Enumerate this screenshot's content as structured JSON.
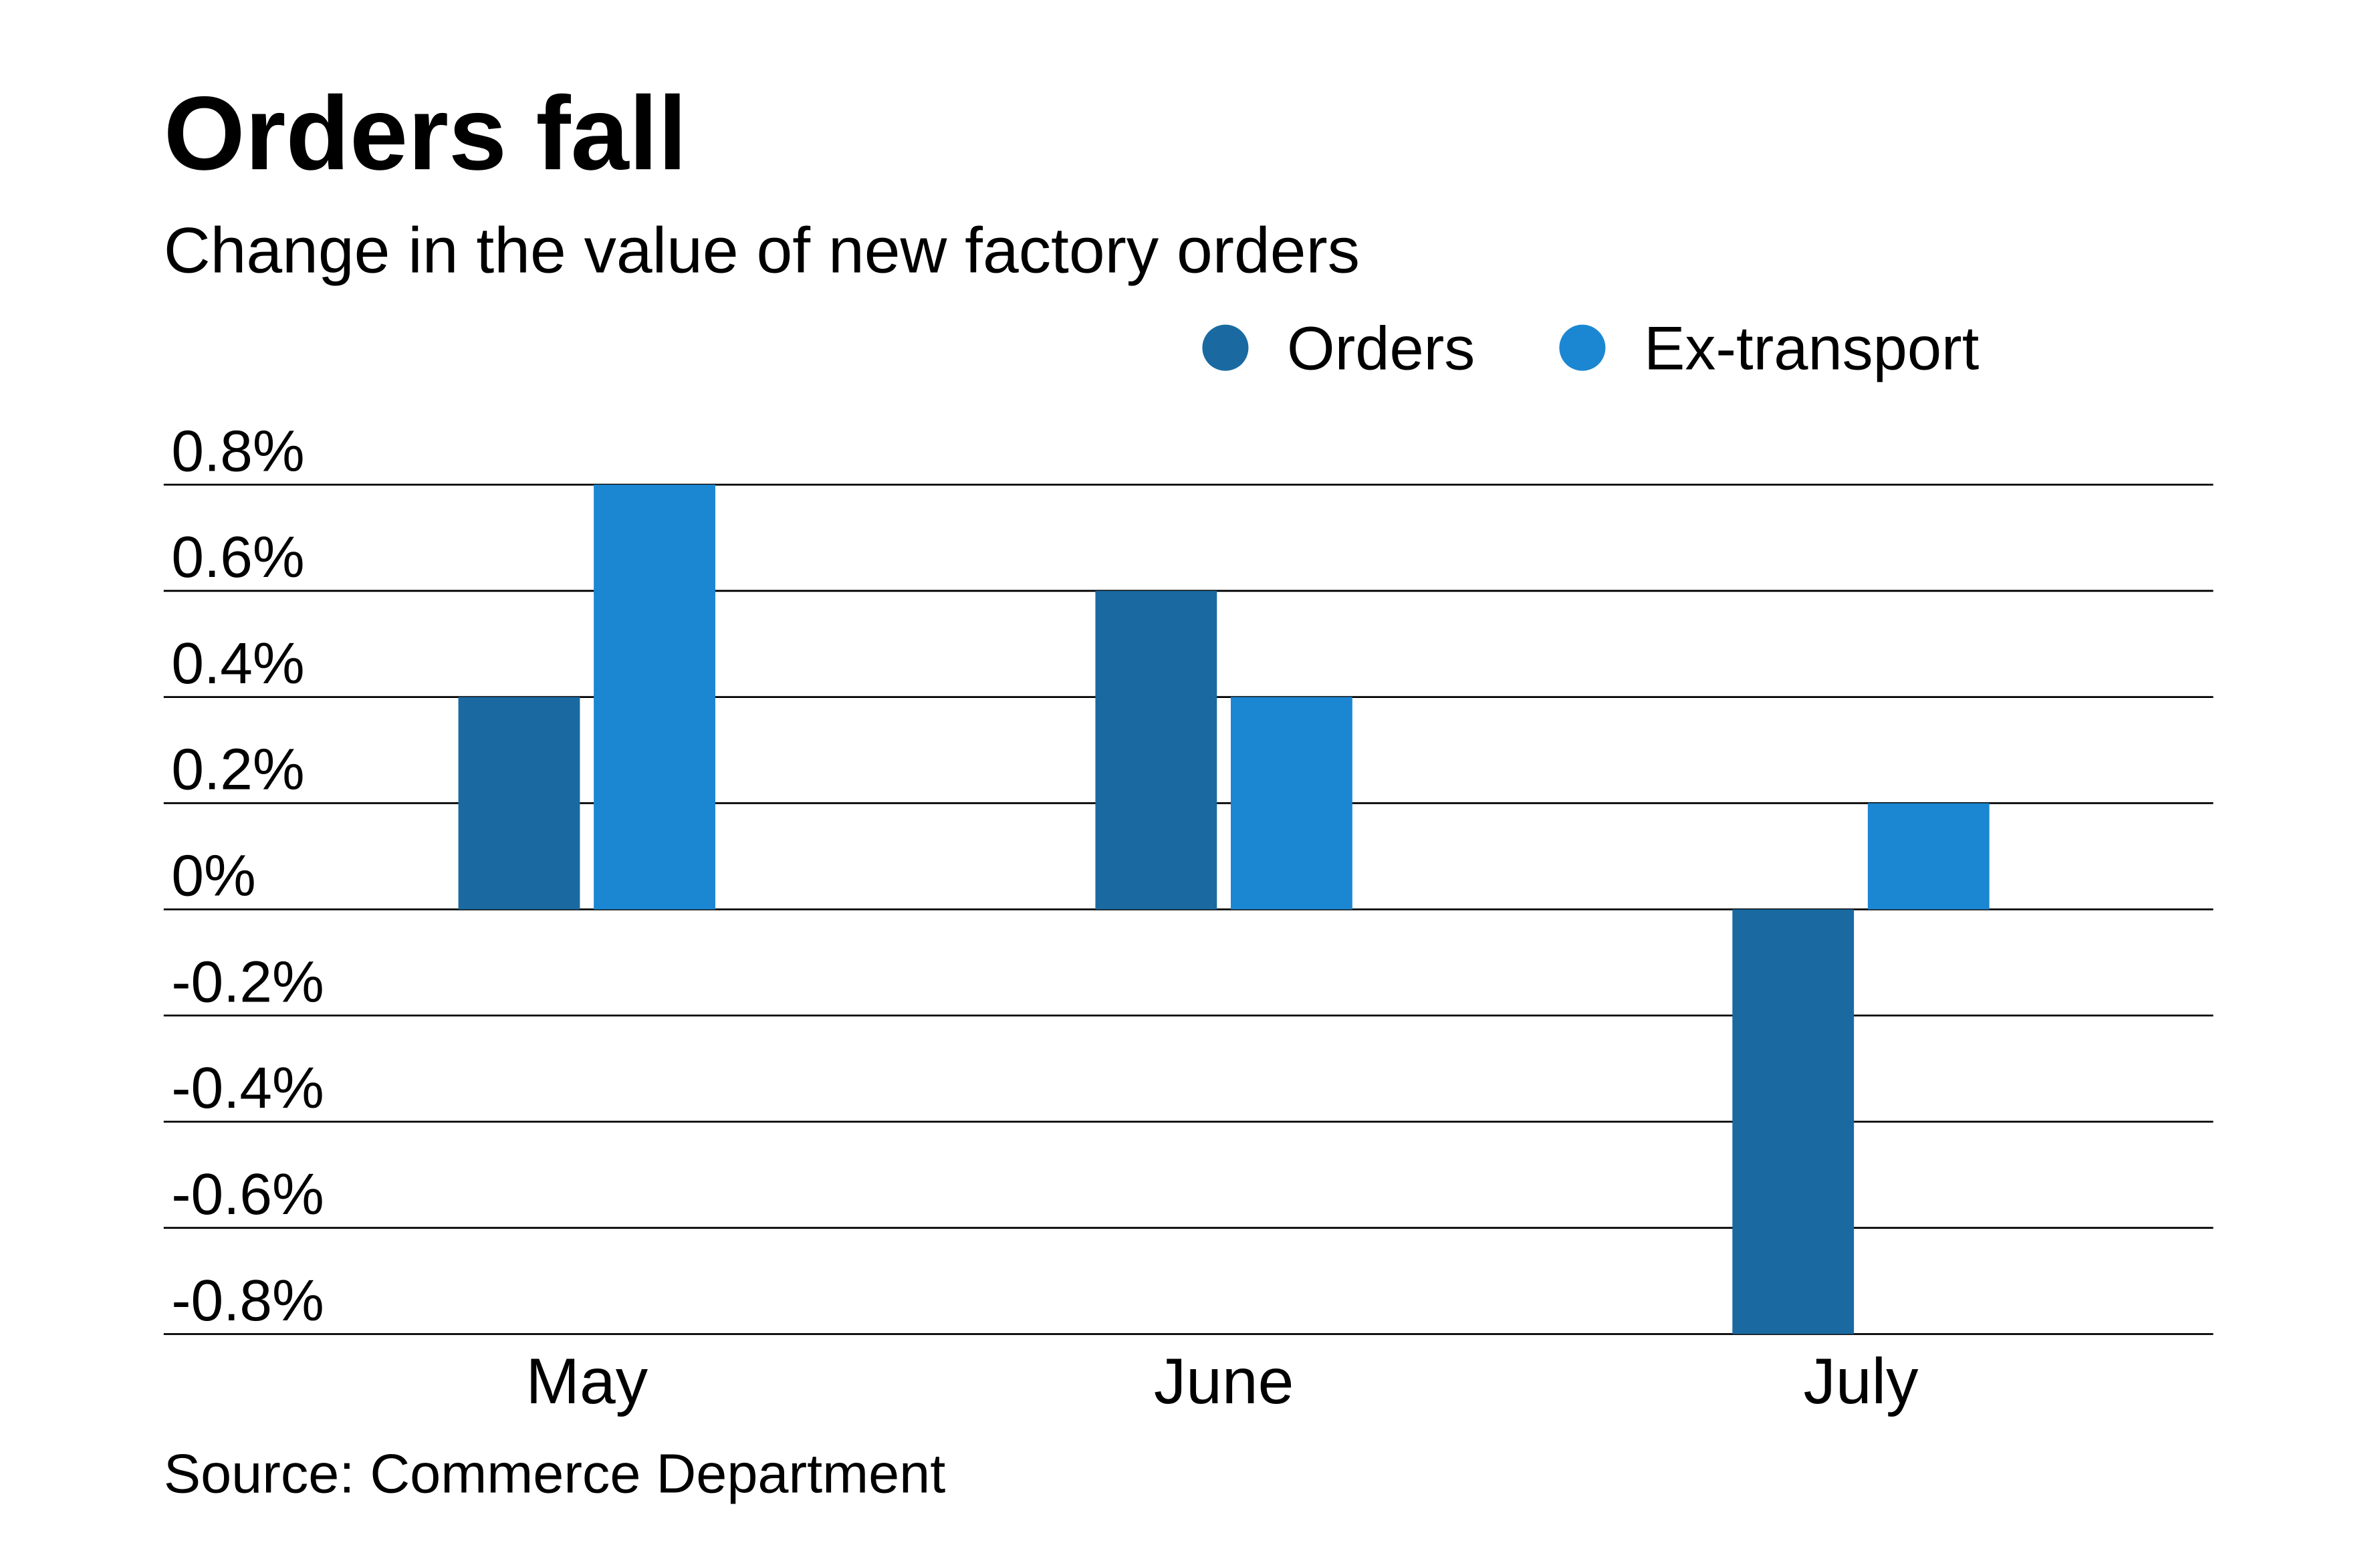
{
  "chart_data": {
    "type": "bar",
    "title": "Orders fall",
    "subtitle": "Change in the value of new factory orders",
    "source": "Source: Commerce Department",
    "categories": [
      "May",
      "June",
      "July"
    ],
    "series": [
      {
        "name": "Orders",
        "values": [
          0.4,
          0.6,
          -0.8
        ],
        "color": "#1a6aa1"
      },
      {
        "name": "Ex-transport",
        "values": [
          0.8,
          0.4,
          0.2
        ],
        "color": "#1b87d2"
      }
    ],
    "yticks": [
      0.8,
      0.6,
      0.4,
      0.2,
      0,
      -0.2,
      -0.4,
      -0.6,
      -0.8
    ],
    "ytick_labels": [
      "0.8%",
      "0.6%",
      "0.4%",
      "0.2%",
      "0%",
      "-0.2%",
      "-0.4%",
      "-0.6%",
      "-0.8%"
    ],
    "ylim": [
      -0.8,
      0.8
    ],
    "xlabel": "",
    "ylabel": "",
    "grid": true,
    "legend_position": "top-right"
  }
}
